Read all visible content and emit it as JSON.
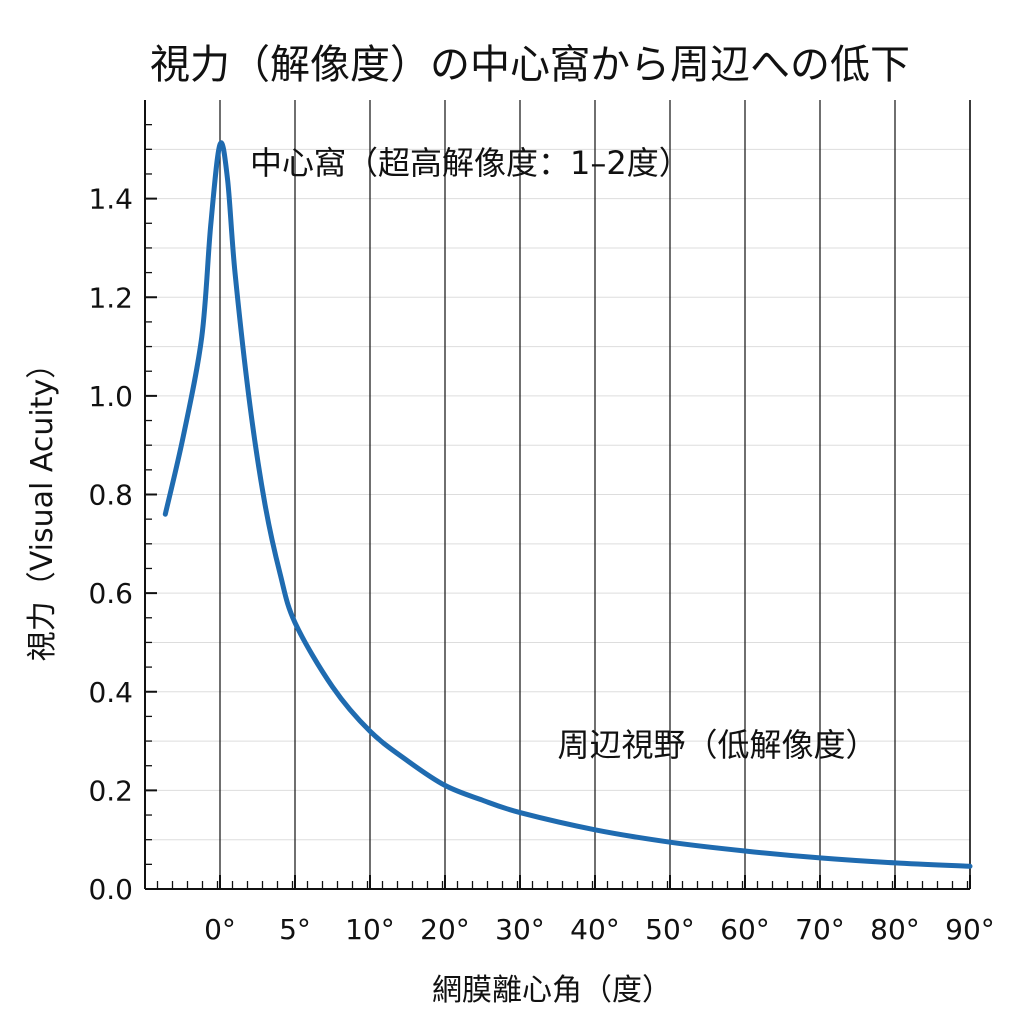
{
  "chart_data": {
    "type": "line",
    "title": "視力（解像度）の中心窩から周辺への低下",
    "xlabel": "網膜離心角（度）",
    "ylabel": "視力（Visual Acuity）",
    "x_tick_labels": [
      "0°",
      "5°",
      "10°",
      "20°",
      "30°",
      "40°",
      "50°",
      "60°",
      "70°",
      "80°",
      "90°"
    ],
    "y_tick_labels": [
      "0.0",
      "0.2",
      "0.4",
      "0.6",
      "0.8",
      "1.0",
      "1.2",
      "1.4"
    ],
    "y_ticks": [
      0.0,
      0.2,
      0.4,
      0.6,
      0.8,
      1.0,
      1.2,
      1.4
    ],
    "ylim": [
      0,
      1.6
    ],
    "x_scale_note": "non-linear: 0°,5°,10° spaced like 10° steps thereafter",
    "grid": {
      "horizontal": true,
      "vertical": true
    },
    "series": [
      {
        "color": "#1f6bb0",
        "points": [
          {
            "x": -3,
            "y": 0.76
          },
          {
            "x": -2,
            "y": 0.92
          },
          {
            "x": -1,
            "y": 1.12
          },
          {
            "x": -0.5,
            "y": 1.35
          },
          {
            "x": 0,
            "y": 1.51
          },
          {
            "x": 0.5,
            "y": 1.44
          },
          {
            "x": 1,
            "y": 1.25
          },
          {
            "x": 2,
            "y": 0.98
          },
          {
            "x": 3,
            "y": 0.78
          },
          {
            "x": 4,
            "y": 0.64
          },
          {
            "x": 5,
            "y": 0.54
          },
          {
            "x": 7.5,
            "y": 0.41
          },
          {
            "x": 10,
            "y": 0.32
          },
          {
            "x": 15,
            "y": 0.26
          },
          {
            "x": 20,
            "y": 0.21
          },
          {
            "x": 25,
            "y": 0.18
          },
          {
            "x": 30,
            "y": 0.155
          },
          {
            "x": 40,
            "y": 0.12
          },
          {
            "x": 50,
            "y": 0.095
          },
          {
            "x": 60,
            "y": 0.077
          },
          {
            "x": 70,
            "y": 0.063
          },
          {
            "x": 80,
            "y": 0.053
          },
          {
            "x": 90,
            "y": 0.046
          }
        ]
      }
    ],
    "annotations": [
      {
        "text": "中心窩（超高解像度：1–2度）",
        "x": 2,
        "y": 1.45
      },
      {
        "text": "周辺視野（低解像度）",
        "x": 35,
        "y": 0.27
      }
    ],
    "colors": {
      "line": "#1f6bb0",
      "grid_h": "#dddddd",
      "grid_v": "#222222",
      "axis": "#111111"
    }
  }
}
